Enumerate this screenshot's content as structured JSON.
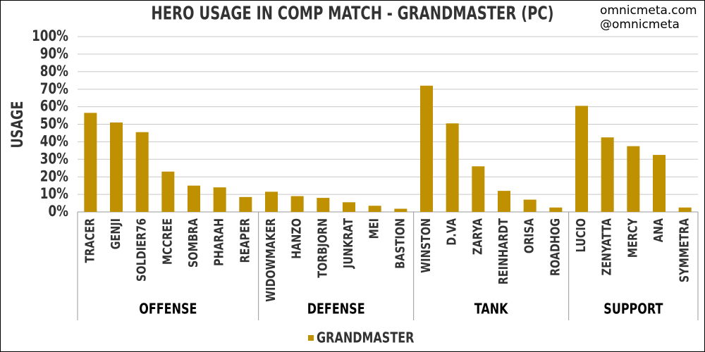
{
  "chart_data": {
    "type": "bar",
    "title": "HERO USAGE IN COMP MATCH - GRANDMASTER (PC)",
    "watermark": [
      "omnicmeta.com",
      "@omnicmeta"
    ],
    "y_label": "USAGE",
    "groups": [
      {
        "name": "OFFENSE",
        "categories": [
          "TRACER",
          "GENJI",
          "SOLDIER76",
          "MCCREE",
          "SOMBRA",
          "PHARAH",
          "REAPER"
        ]
      },
      {
        "name": "DEFENSE",
        "categories": [
          "WIDOWMAKER",
          "HANZO",
          "TORBJORN",
          "JUNKRAT",
          "MEI",
          "BASTION"
        ]
      },
      {
        "name": "TANK",
        "categories": [
          "WINSTON",
          "D.VA",
          "ZARYA",
          "REINHARDT",
          "ORISA",
          "ROADHOG"
        ]
      },
      {
        "name": "SUPPORT",
        "categories": [
          "LUCIO",
          "ZENYATTA",
          "MERCY",
          "ANA",
          "SYMMETRA"
        ]
      }
    ],
    "series": [
      {
        "name": "GRANDMASTER",
        "color": "#bf9000",
        "values": [
          56.5,
          51,
          45.5,
          23,
          15,
          14,
          8.5,
          11.5,
          9,
          8,
          5.5,
          3.5,
          1.8,
          72,
          50.5,
          26,
          12,
          7,
          2.5,
          60.5,
          42.5,
          37.5,
          32.5,
          2.5
        ]
      }
    ],
    "ylim": [
      0,
      100
    ],
    "yticks": [
      {
        "value": 0,
        "label": "0%"
      },
      {
        "value": 10,
        "label": "10%"
      },
      {
        "value": 20,
        "label": "20%"
      },
      {
        "value": 30,
        "label": "30%"
      },
      {
        "value": 40,
        "label": "40%"
      },
      {
        "value": 50,
        "label": "50%"
      },
      {
        "value": 60,
        "label": "60%"
      },
      {
        "value": 70,
        "label": "70%"
      },
      {
        "value": 80,
        "label": "80%"
      },
      {
        "value": 90,
        "label": "90%"
      },
      {
        "value": 100,
        "label": "100%"
      }
    ],
    "grid": true,
    "legend": "bottom"
  }
}
